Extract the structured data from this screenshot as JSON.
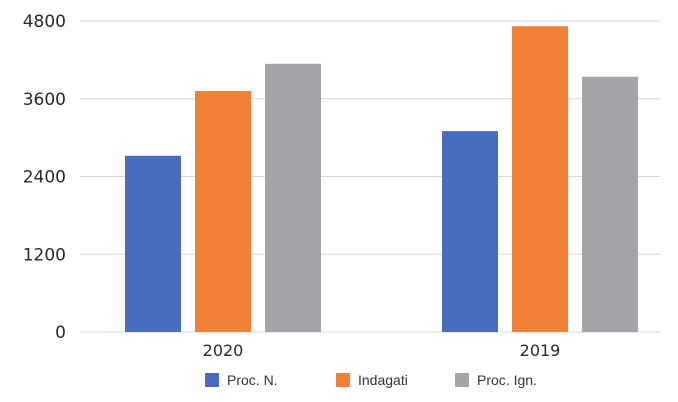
{
  "chart_data": {
    "type": "bar",
    "categories": [
      "2020",
      "2019"
    ],
    "series": [
      {
        "name": "Proc. N.",
        "values": [
          2720,
          3100
        ],
        "color": "#4a6cc0"
      },
      {
        "name": "Indagati",
        "values": [
          3720,
          4720
        ],
        "color": "#f28036"
      },
      {
        "name": "Proc. Ign.",
        "values": [
          4140,
          3940
        ],
        "color": "#a5a5a9"
      }
    ],
    "title": "",
    "xlabel": "",
    "ylabel": "",
    "ylim": [
      0,
      4800
    ],
    "yticks": [
      "0",
      "1200",
      "2400",
      "3600",
      "4800"
    ],
    "grid": true,
    "legend_position": "bottom"
  }
}
